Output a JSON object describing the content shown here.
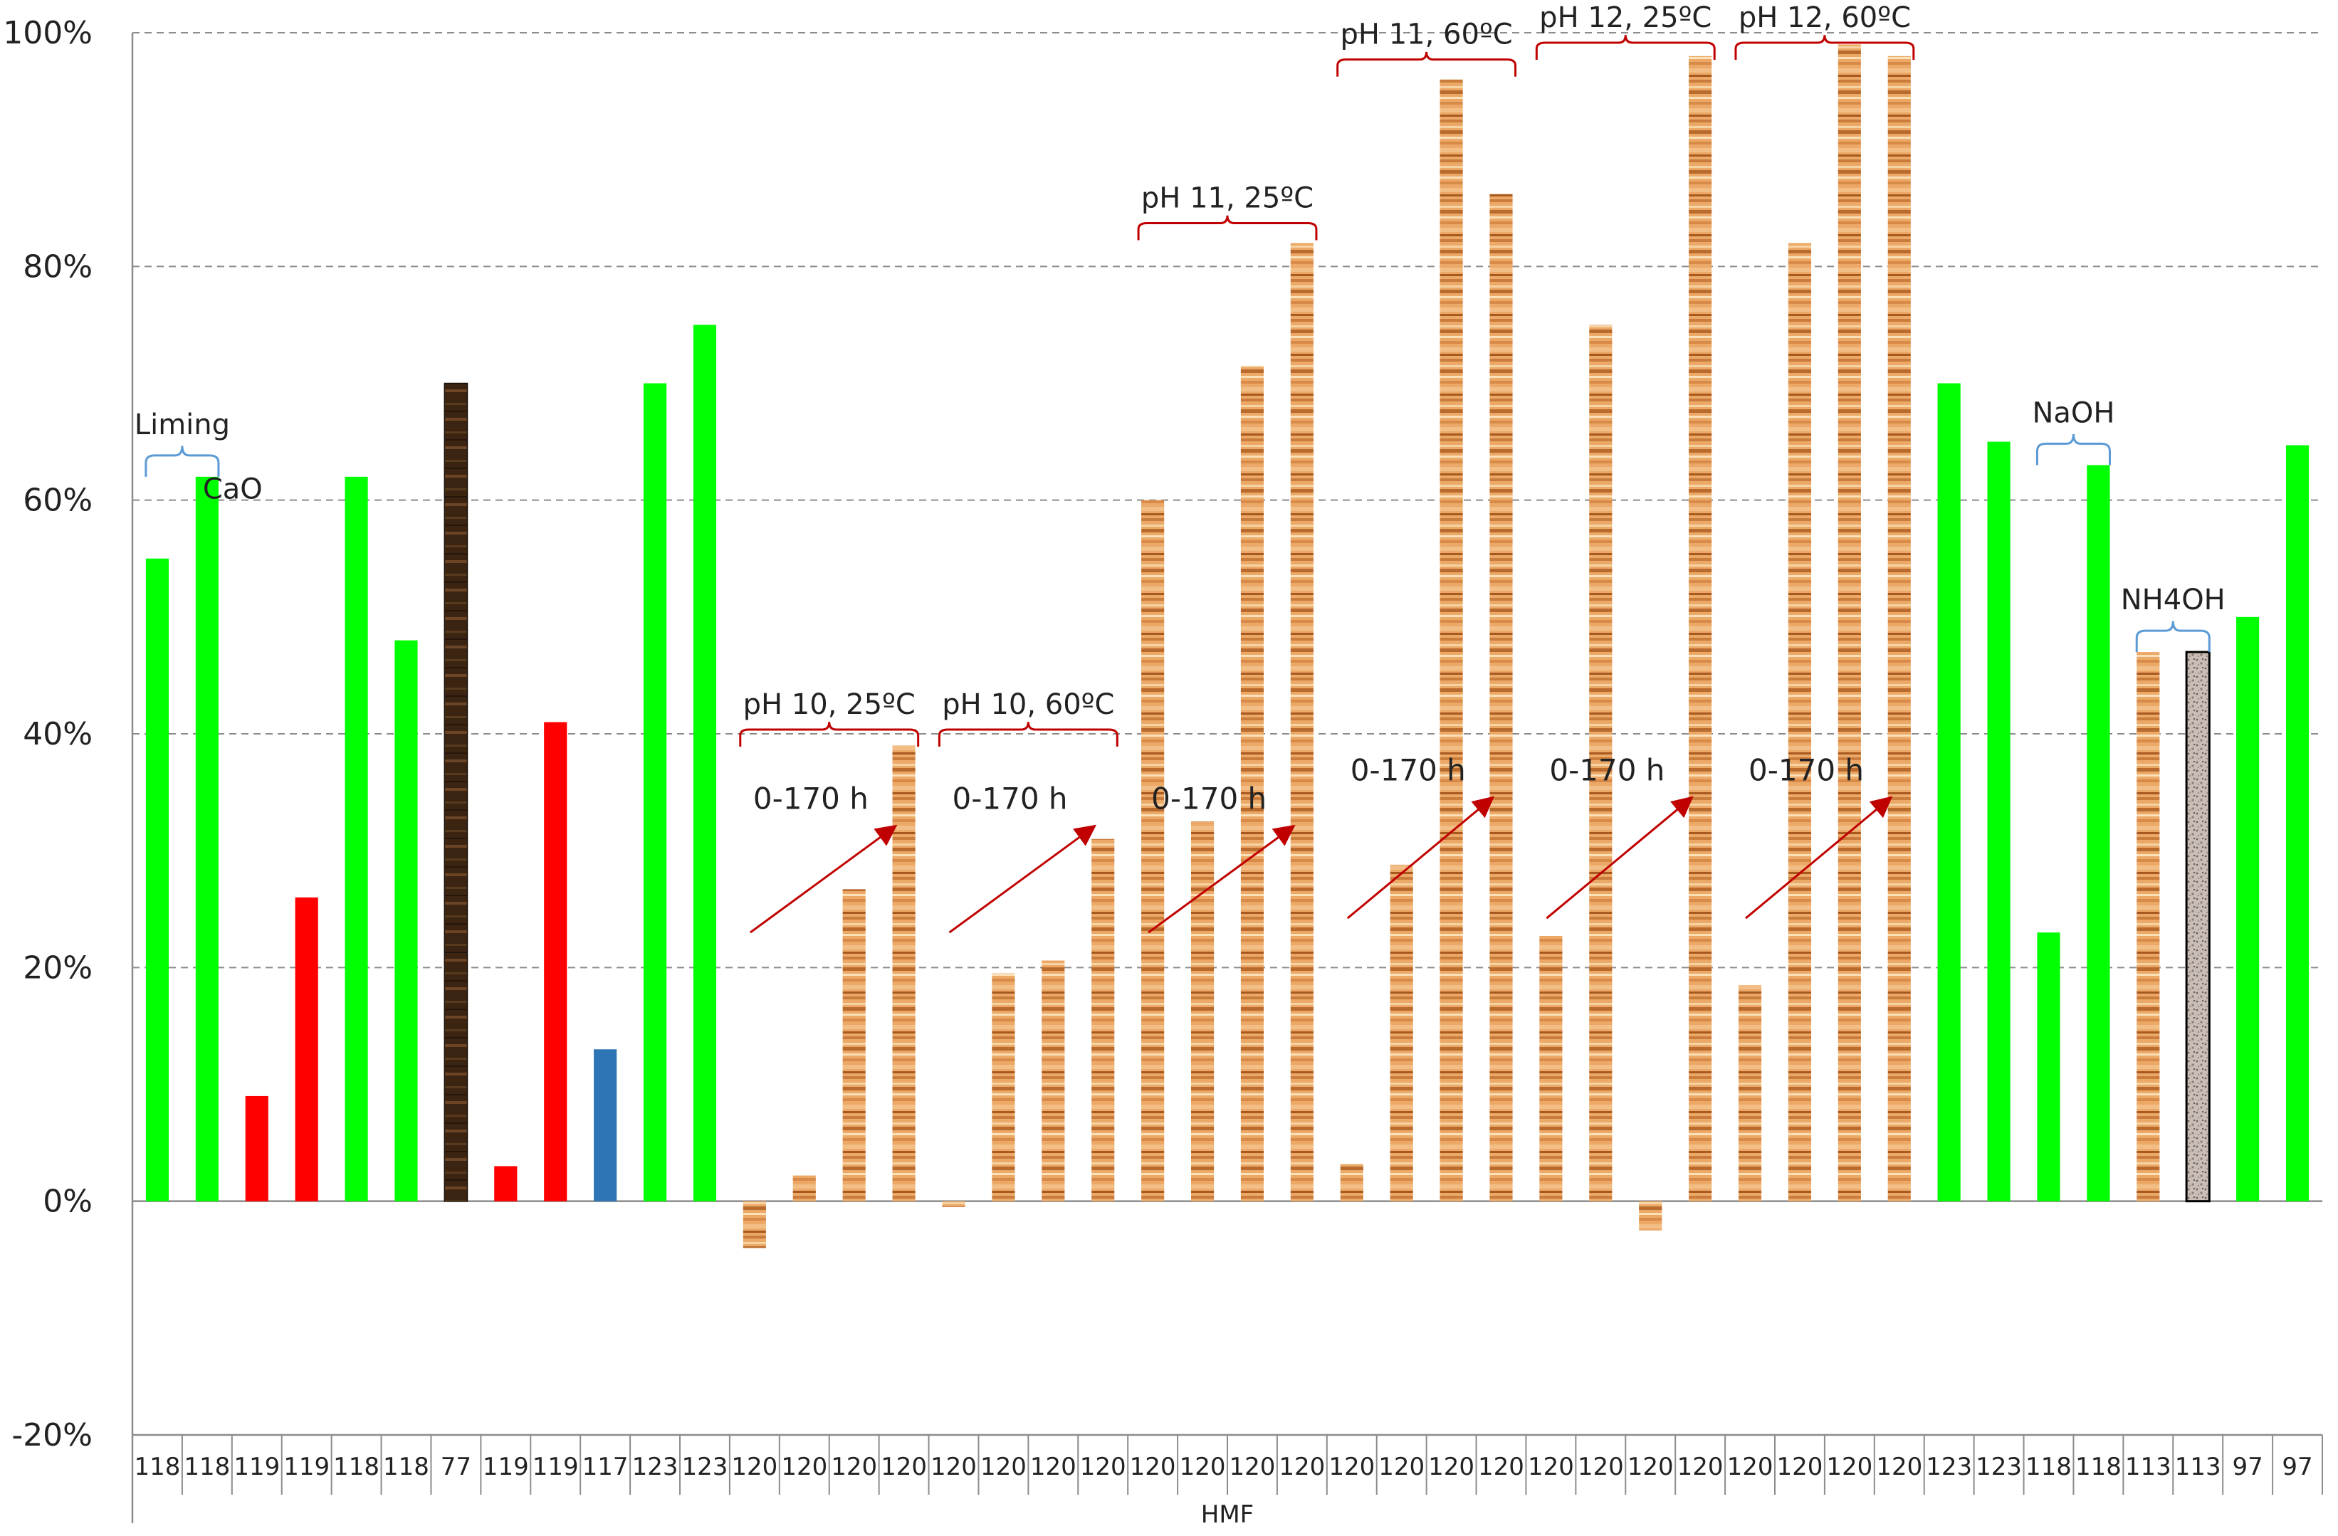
{
  "chart_data": {
    "type": "bar",
    "xlabel": "HMF",
    "ylabel": "",
    "title": "",
    "ylim": [
      -20,
      100
    ],
    "ytick_labels": [
      "100%",
      "80%",
      "60%",
      "40%",
      "20%",
      "0%",
      "-20%"
    ],
    "ytick_values": [
      100,
      80,
      60,
      40,
      20,
      0,
      -20
    ],
    "grid": "horizontal dashed",
    "categories": [
      "118",
      "118",
      "119",
      "119",
      "118",
      "118",
      "77",
      "119",
      "119",
      "117",
      "123",
      "123",
      "120",
      "120",
      "120",
      "120",
      "120",
      "120",
      "120",
      "120",
      "120",
      "120",
      "120",
      "120",
      "120",
      "120",
      "120",
      "120",
      "120",
      "120",
      "120",
      "120",
      "120",
      "120",
      "120",
      "120",
      "123",
      "123",
      "118",
      "118",
      "113",
      "113",
      "97",
      "97"
    ],
    "values": [
      55,
      62,
      9,
      26,
      62,
      48,
      70,
      3,
      41,
      13,
      70,
      75,
      -4,
      2.2,
      26.7,
      39,
      -0.5,
      19.5,
      20.6,
      31,
      60,
      32.5,
      71.5,
      82,
      3.2,
      28.8,
      96,
      86.2,
      22.7,
      75,
      -2.5,
      98,
      18.5,
      82,
      99,
      98,
      70,
      65,
      23,
      63,
      47,
      47,
      50,
      64.7
    ],
    "bar_styles": [
      "green",
      "green",
      "red",
      "red",
      "green",
      "green",
      "dark-wood",
      "red",
      "red",
      "blue",
      "green",
      "green",
      "wood",
      "wood",
      "wood",
      "wood",
      "wood",
      "wood",
      "wood",
      "wood",
      "wood",
      "wood",
      "wood",
      "wood",
      "wood",
      "wood",
      "wood",
      "wood",
      "wood",
      "wood",
      "wood",
      "wood",
      "wood",
      "wood",
      "wood",
      "wood",
      "green",
      "green",
      "green",
      "green",
      "wood",
      "speckled",
      "green",
      "green"
    ],
    "colors": {
      "green": "#00ff00",
      "red": "#ff0000",
      "blue": "#2e75b6",
      "dark_wood": "#3b2412",
      "wood": "#e8a15c",
      "speckled": "#b5a9a0",
      "grid": "#8c8c8c",
      "bracket_red": "#c00000",
      "bracket_blue": "#5b9bd5",
      "arrow": "#c00000"
    },
    "annotations": {
      "red_groups": [
        {
          "label": "pH 10, 25ºC",
          "start": 12,
          "end": 15
        },
        {
          "label": "pH 10, 60ºC",
          "start": 16,
          "end": 19
        },
        {
          "label": "pH 11, 25ºC",
          "start": 20,
          "end": 23
        },
        {
          "label": "pH 11, 60ºC",
          "start": 24,
          "end": 27
        },
        {
          "label": "pH 12, 25ºC",
          "start": 28,
          "end": 31
        },
        {
          "label": "pH 12, 60ºC",
          "start": 32,
          "end": 35
        }
      ],
      "blue_groups": [
        {
          "label": "Liming",
          "start": 0,
          "end": 1
        },
        {
          "label": "NaOH",
          "start": 38,
          "end": 39
        },
        {
          "label": "NH4OH",
          "start": 40,
          "end": 41
        }
      ],
      "range_label": "0-170 h",
      "cao_label": "CaO"
    }
  }
}
